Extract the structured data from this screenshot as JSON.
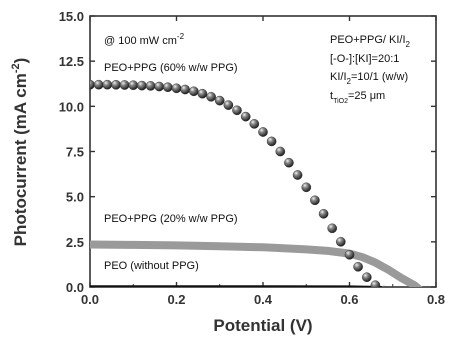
{
  "chart_data": {
    "type": "scatter",
    "title": "",
    "xlabel": "Potential (V)",
    "ylabel": "Photocurrent (mA cm^-2)",
    "xlim": [
      0.0,
      0.8
    ],
    "ylim": [
      0.0,
      15.0
    ],
    "xticks": [
      "0.0",
      "0.2",
      "0.4",
      "0.6",
      "0.8"
    ],
    "xtick_values": [
      0.0,
      0.2,
      0.4,
      0.6,
      0.8
    ],
    "yticks": [
      "0.0",
      "2.5",
      "5.0",
      "7.5",
      "10.0",
      "12.5",
      "15.0"
    ],
    "ytick_values": [
      0.0,
      2.5,
      5.0,
      7.5,
      10.0,
      12.5,
      15.0
    ],
    "grid": false,
    "legend": "none",
    "series": [
      {
        "name": "PEO+PPG (60% w/w PPG)",
        "style": "dark spheres",
        "color": "#4a4a4a",
        "x": [
          0.0,
          0.02,
          0.04,
          0.06,
          0.08,
          0.1,
          0.12,
          0.14,
          0.16,
          0.18,
          0.2,
          0.22,
          0.24,
          0.26,
          0.28,
          0.3,
          0.32,
          0.34,
          0.36,
          0.38,
          0.4,
          0.42,
          0.44,
          0.46,
          0.48,
          0.5,
          0.52,
          0.54,
          0.56,
          0.58,
          0.6,
          0.62,
          0.64,
          0.66,
          0.68,
          0.7,
          0.71,
          0.72
        ],
        "y": [
          11.2,
          11.2,
          11.2,
          11.19,
          11.18,
          11.17,
          11.15,
          11.13,
          11.1,
          11.06,
          11.0,
          10.93,
          10.83,
          10.7,
          10.53,
          10.32,
          10.07,
          9.78,
          9.43,
          9.03,
          8.58,
          8.06,
          7.5,
          6.88,
          6.2,
          5.52,
          4.8,
          4.05,
          3.25,
          2.5,
          1.78,
          1.12,
          0.54,
          0.1,
          -0.2,
          -0.45,
          -0.5,
          -0.55
        ]
      },
      {
        "name": "PEO+PPG (20% w/w PPG)",
        "style": "light gray thick line",
        "color": "#9a9a9a",
        "x": [
          0.0,
          0.1,
          0.2,
          0.3,
          0.4,
          0.5,
          0.55,
          0.6,
          0.63,
          0.66,
          0.69,
          0.72,
          0.75,
          0.76
        ],
        "y": [
          2.35,
          2.33,
          2.3,
          2.25,
          2.2,
          2.08,
          2.0,
          1.85,
          1.65,
          1.35,
          0.95,
          0.5,
          0.1,
          -0.1
        ]
      },
      {
        "name": "PEO (without PPG)",
        "style": "black thin line",
        "color": "#111111",
        "x": [
          0.0,
          0.2,
          0.4,
          0.6,
          0.68
        ],
        "y": [
          0.05,
          0.05,
          0.05,
          0.04,
          0.0
        ]
      }
    ],
    "annotations": {
      "intensity": "@ 100 mW cm",
      "intensity_sup": "-2",
      "series_labels": [
        "PEO+PPG (60% w/w PPG)",
        "PEO+PPG (20% w/w PPG)",
        "PEO (without PPG)"
      ],
      "electrolyte_title_main": "PEO+PPG/ KI/I",
      "electrolyte_title_sub": "2",
      "ratio_line": "[-O-]:[KI]=20:1",
      "ki_line_main": "KI/I",
      "ki_line_sub": "2",
      "ki_line_rest": "=10/1 (w/w)",
      "thickness_main": "t",
      "thickness_sub": "TiO2",
      "thickness_rest": "=25 μm"
    },
    "ylabel_main": "Photocurrent (mA cm",
    "ylabel_sup": "-2",
    "ylabel_end": ")"
  }
}
